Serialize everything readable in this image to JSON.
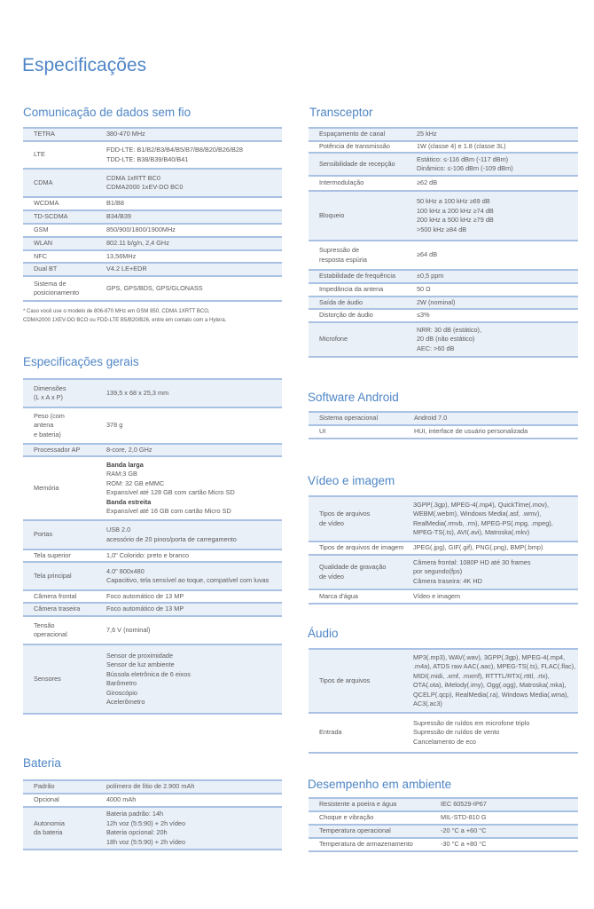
{
  "title": "Especificações",
  "colors": {
    "heading": "#4f86c6",
    "row_shade": "#eaf0f8",
    "rule": "#a9c1e3"
  },
  "sections": {
    "comunicacao": {
      "heading": "Comunicação de dados sem fio",
      "rows": [
        {
          "label": [
            "TETRA"
          ],
          "value": [
            "380-470 MHz"
          ]
        },
        {
          "label": [
            "LTE"
          ],
          "value": [
            "FDD-LTE: B1/B2/B3/B4/B5/B7/B8/B20/B26/B28",
            "TDD-LTE: B38/B39/B40/B41"
          ]
        },
        {
          "label": [
            "CDMA"
          ],
          "value": [
            "CDMA 1xRTT BC0",
            "CDMA2000 1xEV-DO BC0"
          ]
        },
        {
          "label": [
            "WCDMA"
          ],
          "value": [
            "B1/B8"
          ]
        },
        {
          "label": [
            "TD-SCDMA"
          ],
          "value": [
            "B34/B39"
          ]
        },
        {
          "label": [
            "GSM"
          ],
          "value": [
            "850/900/1800/1900MHz"
          ]
        },
        {
          "label": [
            "WLAN"
          ],
          "value": [
            "802.11 b/g/n, 2,4 GHz"
          ]
        },
        {
          "label": [
            "NFC"
          ],
          "value": [
            "13,56MHz"
          ]
        },
        {
          "label": [
            "Dual BT"
          ],
          "value": [
            "V4.2 LE+EDR"
          ]
        },
        {
          "label": [
            "Sistema de",
            "posicionamento"
          ],
          "value": [
            "GPS, GPS/BDS, GPS/GLONASS"
          ]
        }
      ],
      "footnote": [
        "* Caso você use o modelo de 806-870 MHz em GSM 850, CDMA 1XRTT BCO,",
        "CDMA2000 1XEV-DO BCO ou FDD-LTE B5/B20/B26, entre em contato com a Hytera."
      ]
    },
    "transceptor": {
      "heading": "Transceptor",
      "rows": [
        {
          "label": [
            "Espaçamento de canal"
          ],
          "value": [
            "25 kHz"
          ]
        },
        {
          "label": [
            "Potência de transmissão"
          ],
          "value": [
            "1W (classe 4) e 1.8 (classe 3L)"
          ]
        },
        {
          "label": [
            "Sensibilidade de recepção"
          ],
          "value": [
            "Estático: ≤-116 dBm (-117 dBm)",
            "Dinâmico: ≤-106 dBm (-109 dBm)"
          ]
        },
        {
          "label": [
            "Intermodulação"
          ],
          "value": [
            "≥62 dB"
          ]
        },
        {
          "label": [
            "Bloqueio"
          ],
          "value": [
            "50 kHz a 100 kHz ≥69 dB",
            "100 kHz a 200 kHz ≥74 dB",
            "200 kHz a 500 kHz ≥79 dB",
            ">500 kHz ≥84 dB"
          ]
        },
        {
          "label": [
            "Supressão de",
            "resposta espúria"
          ],
          "value": [
            "≥64 dB"
          ]
        },
        {
          "label": [
            "Estabilidade de frequência"
          ],
          "value": [
            "±0,5 ppm"
          ]
        },
        {
          "label": [
            "Impedância da antena"
          ],
          "value": [
            "50 Ω"
          ]
        },
        {
          "label": [
            "Saída de áudio"
          ],
          "value": [
            "2W (nominal)"
          ]
        },
        {
          "label": [
            "Distorção de áudio"
          ],
          "value": [
            "≤3%"
          ]
        },
        {
          "label": [
            "Microfone"
          ],
          "value": [
            "NRR: 30 dB (estático),",
            "20 dB (não estático)",
            "AEC: >60 dB"
          ]
        }
      ]
    },
    "gerais": {
      "heading": "Especificações gerais",
      "rows": [
        {
          "label": [
            "Dimensões",
            "(L x A x P)"
          ],
          "value": [
            "139,5 x 68 x 25,3 mm"
          ]
        },
        {
          "label": [
            "Peso (com",
            "antena",
            "e bateria)"
          ],
          "value": [
            "378 g"
          ]
        },
        {
          "label": [
            "Processador AP"
          ],
          "value": [
            "8-core, 2,0 GHz"
          ]
        },
        {
          "label": [
            "Memória"
          ],
          "value": [
            "Banda larga",
            "RAM:3 GB",
            "ROM: 32 GB eMMC",
            "Expansível até 128 GB com cartão Micro SD",
            "Banda estreita",
            "Expansível até 16 GB com cartão Micro SD"
          ],
          "bold_lines": [
            0,
            4
          ]
        },
        {
          "label": [
            "Portas"
          ],
          "value": [
            "USB 2.0",
            "acessório de 20 pinos/porta de carregamento"
          ]
        },
        {
          "label": [
            "Tela superior"
          ],
          "value": [
            "1,0\" Colorido: preto e branco"
          ]
        },
        {
          "label": [
            "Tela principal"
          ],
          "value": [
            "4.0\" 800x480",
            "Capacitivo, tela sensível ao toque, compatível com luvas"
          ]
        },
        {
          "label": [
            "Câmera frontal"
          ],
          "value": [
            "Foco automático de 13 MP"
          ]
        },
        {
          "label": [
            "Câmera traseira"
          ],
          "value": [
            "Foco automático de 13 MP"
          ]
        },
        {
          "label": [
            "Tensão",
            "operacional"
          ],
          "value": [
            "7,6 V (nominal)"
          ]
        },
        {
          "label": [
            "Sensores"
          ],
          "value": [
            "Sensor de proximidade",
            "Sensor de luz ambiente",
            "Bússola eletrônica de 6 eixos",
            "Barômetro",
            "Giroscópio",
            "Acelerômetro"
          ]
        }
      ]
    },
    "bateria": {
      "heading": "Bateria",
      "rows": [
        {
          "label": [
            "Padrão"
          ],
          "value": [
            "polímero de lítio de 2.900 mAh"
          ]
        },
        {
          "label": [
            "Opcional"
          ],
          "value": [
            "4000 mAh"
          ]
        },
        {
          "label": [
            "Autonomia",
            "da bateria"
          ],
          "value": [
            "Bateria padrão: 14h",
            "12h voz (5:5:90) + 2h vídeo",
            "Bateria opcional: 20h",
            "18h voz (5:5:90) + 2h vídeo"
          ]
        }
      ]
    },
    "android": {
      "heading": "Software Android",
      "rows": [
        {
          "label": [
            "Sistema operacional"
          ],
          "value": [
            "Android 7.0"
          ]
        },
        {
          "label": [
            "UI"
          ],
          "value": [
            "HUI, interface de usuário personalizada"
          ]
        }
      ]
    },
    "video": {
      "heading": "Vídeo e imagem",
      "rows": [
        {
          "label": [
            "Tipos de arquivos",
            "de vídeo"
          ],
          "value": [
            "3GPP(.3gp), MPEG-4(.mp4), QuickTime(.mov),",
            "WEBM(.webm), Windows Media(.asf, .wmv),",
            "RealMedia(.rmvb, .rm), MPEG-PS(.mpg, .mpeg),",
            "MPEG-TS(.ts), AVI(.avi), Matroska(.mkv)"
          ]
        },
        {
          "label": [
            "Tipos de arquivos de imagem"
          ],
          "value": [
            "JPEG(.jpg), GIF(.gif), PNG(.png), BMP(.bmp)"
          ]
        },
        {
          "label": [
            "Qualidade de gravação",
            "de vídeo"
          ],
          "value": [
            "Câmera frontal: 1080P HD até 30 frames",
            "por segundo(fps)",
            "Câmera traseira: 4K HD"
          ]
        },
        {
          "label": [
            "Marca d'água"
          ],
          "value": [
            "Vídeo e imagem"
          ]
        }
      ]
    },
    "audio": {
      "heading": "Áudio",
      "rows": [
        {
          "label": [
            "Tipos de arquivos"
          ],
          "value": [
            "MP3(.mp3), WAV(.wav), 3GPP(.3gp), MPEG-4(.mp4,",
            ".m4a), ATDS raw AAC(.aac), MPEG-TS(.ts), FLAC(.flac),",
            "MIDI(.midi, .xmf, .mxmf), RTTTL/RTX(.rtttl, .rtx),",
            "OTA(.ota), iMelody(.imy), Ogg(.ogg), Matroska(.mka),",
            "QCELP(.qcp), RealMedia(.ra), Windows Media(.wma),",
            "AC3(.ac3)"
          ]
        },
        {
          "label": [
            "Entrada"
          ],
          "value": [
            "Supressão de ruídos em microfone triplo",
            "Supressão de ruídos de vento",
            "Cancelamento de eco"
          ]
        }
      ]
    },
    "ambiente": {
      "heading": "Desempenho em ambiente",
      "rows": [
        {
          "label": [
            "Resistente a poeira e água"
          ],
          "value": [
            "IEC 60529-IP67"
          ]
        },
        {
          "label": [
            "Choque e vibração"
          ],
          "value": [
            "MIL-STD-810 G"
          ]
        },
        {
          "label": [
            "Temperatura operacional"
          ],
          "value": [
            "-20 °C a +60 °C"
          ]
        },
        {
          "label": [
            "Temperatura de armazenamento"
          ],
          "value": [
            "-30 °C a +80 °C"
          ]
        }
      ]
    }
  }
}
